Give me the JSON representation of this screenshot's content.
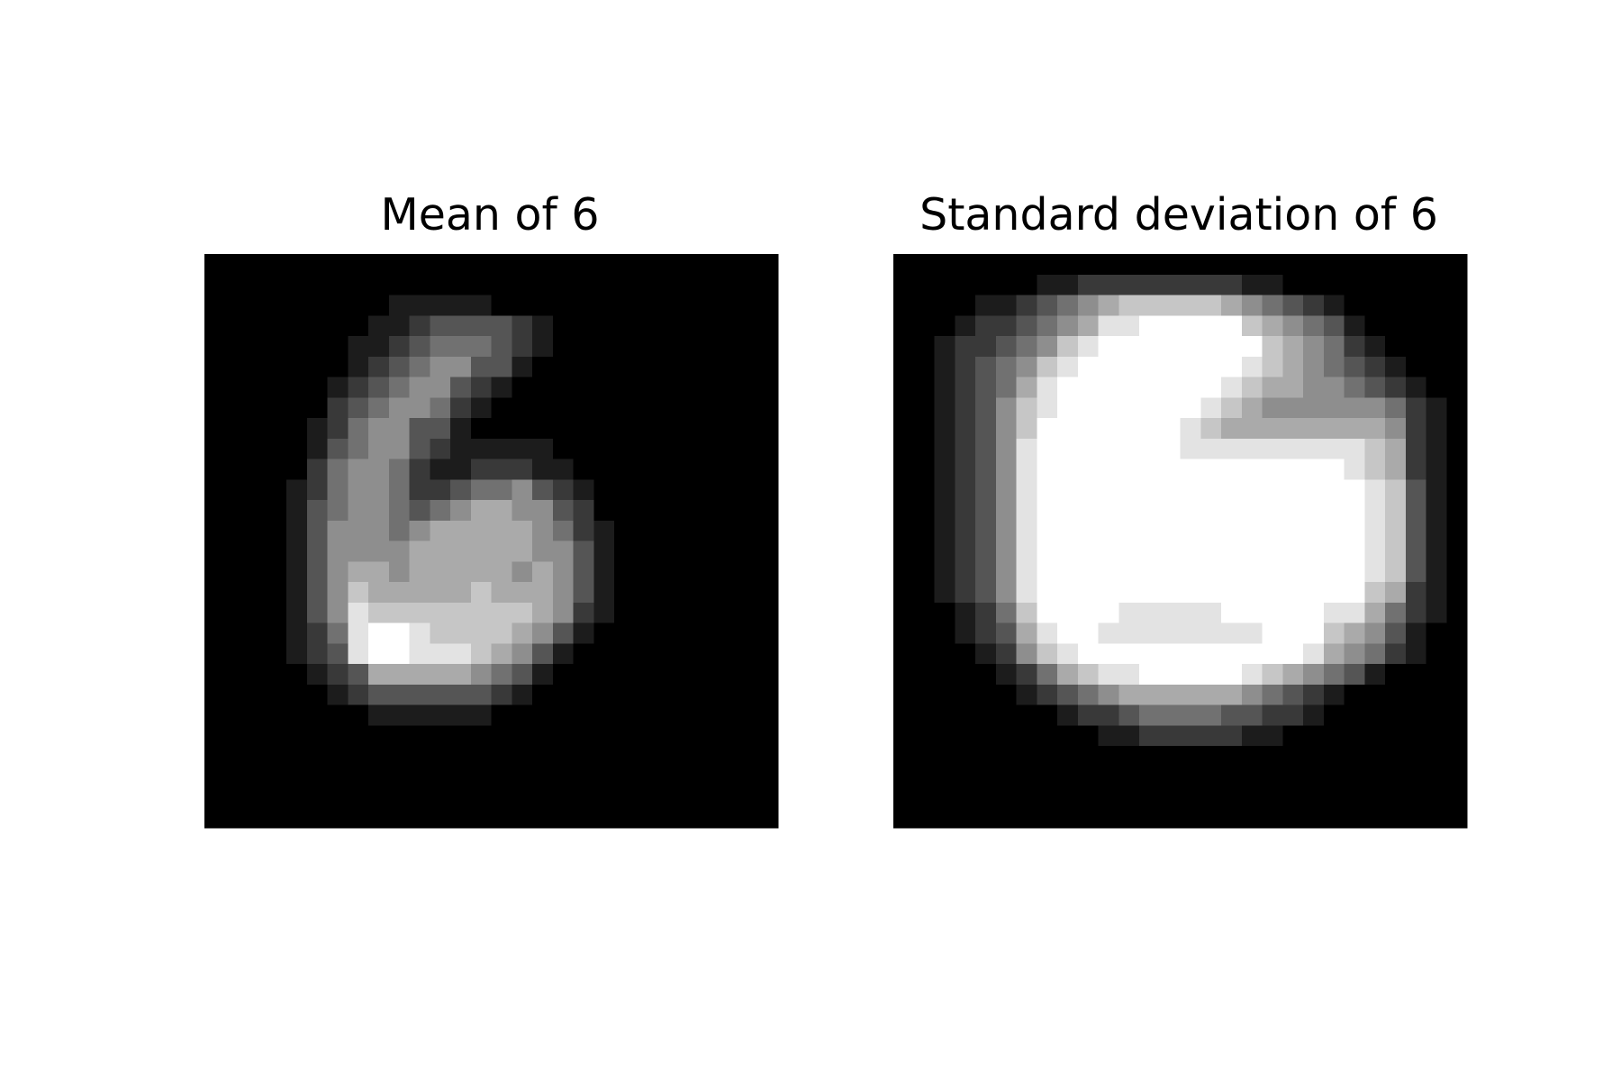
{
  "chart_data": [
    {
      "type": "heatmap",
      "title": "Mean of 6",
      "colormap": "gray",
      "axes_visible": false,
      "grid_size": [
        28,
        28
      ],
      "value_range": [
        0,
        1
      ],
      "rows": [
        "0000000000000000000000000000",
        "0000000000000000000000000000",
        "0000000001111100000000000000",
        "0000000011233332100000000000",
        "0000000112344432100000000000",
        "0000000123455331000000000000",
        "0000001234553210000000000000",
        "0000002345542100000000000000",
        "0000012455331000000000000000",
        "0000013455321111100000000000",
        "0000024554211222110000000000",
        "0000124554223445321000000000",
        "0000134554345665532000000000",
        "0000135554566666542100000000",
        "0000135555666666553100000000",
        "0000135665666665653100000000",
        "0000135766666766653100000000",
        "0000135877777777652100000000",
        "0000124899877776531000000000",
        "0000123899888765310000000000",
        "0000012366666543100000000000",
        "0000001233333321000000000000",
        "0000000011111100000000000000",
        "0000000000000000000000000000",
        "0000000000000000000000000000",
        "0000000000000000000000000000",
        "0000000000000000000000000000",
        "0000000000000000000000000000"
      ]
    },
    {
      "type": "heatmap",
      "title": "Standard deviation of 6",
      "colormap": "gray",
      "axes_visible": false,
      "grid_size": [
        28,
        28
      ],
      "value_range": [
        0,
        1
      ],
      "rows": [
        "0000000000000000000000000000",
        "0000000112222222211000000000",
        "0000112345677777654321000000",
        "0001223456889999976543100000",
        "0012234578999999997654210000",
        "0012345789999999987654321000",
        "0012346899999999876655432100",
        "0012357899999998765555554210",
        "0012357999999987666666665210",
        "0012358999999988888888876210",
        "0012358999999999999999876210",
        "0012358999999999999999987310",
        "0012358999999999999999987310",
        "0012358999999999999999987310",
        "0012358999999999999999987310",
        "0012358999999999999999987310",
        "0012358999999999999999976210",
        "0001247999988888999998864210",
        "0001236899888888889997653100",
        "0000125789999999999986542100",
        "0000012467889999987654310000",
        "0000001234566666654321000000",
        "0000000012234444332210000000",
        "0000000000112222211000000000",
        "0000000000000000000000000000",
        "0000000000000000000000000000",
        "0000000000000000000000000000",
        "0000000000000000000000000000"
      ]
    }
  ]
}
